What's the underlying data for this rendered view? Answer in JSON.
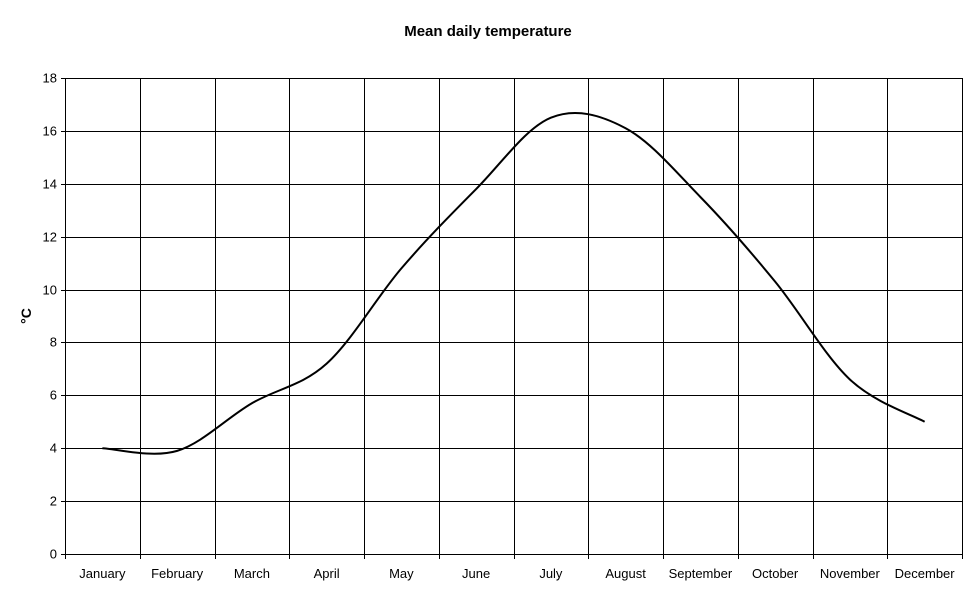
{
  "chart_data": {
    "type": "line",
    "title": "Mean daily temperature",
    "xlabel": "",
    "ylabel": "°C",
    "categories": [
      "January",
      "February",
      "March",
      "April",
      "May",
      "June",
      "July",
      "August",
      "September",
      "October",
      "November",
      "December"
    ],
    "series": [
      {
        "values": [
          4.0,
          3.9,
          5.7,
          7.2,
          10.8,
          13.8,
          16.5,
          16.1,
          13.5,
          10.3,
          6.6,
          5.0
        ]
      }
    ],
    "ylim": [
      0,
      18
    ],
    "yticks": [
      "0",
      "2",
      "4",
      "6",
      "8",
      "10",
      "12",
      "14",
      "16",
      "18"
    ],
    "grid": true,
    "legend": "none",
    "smooth": true,
    "colors": {
      "line": "#000000",
      "grid": "#000000",
      "background": "#ffffff"
    }
  }
}
